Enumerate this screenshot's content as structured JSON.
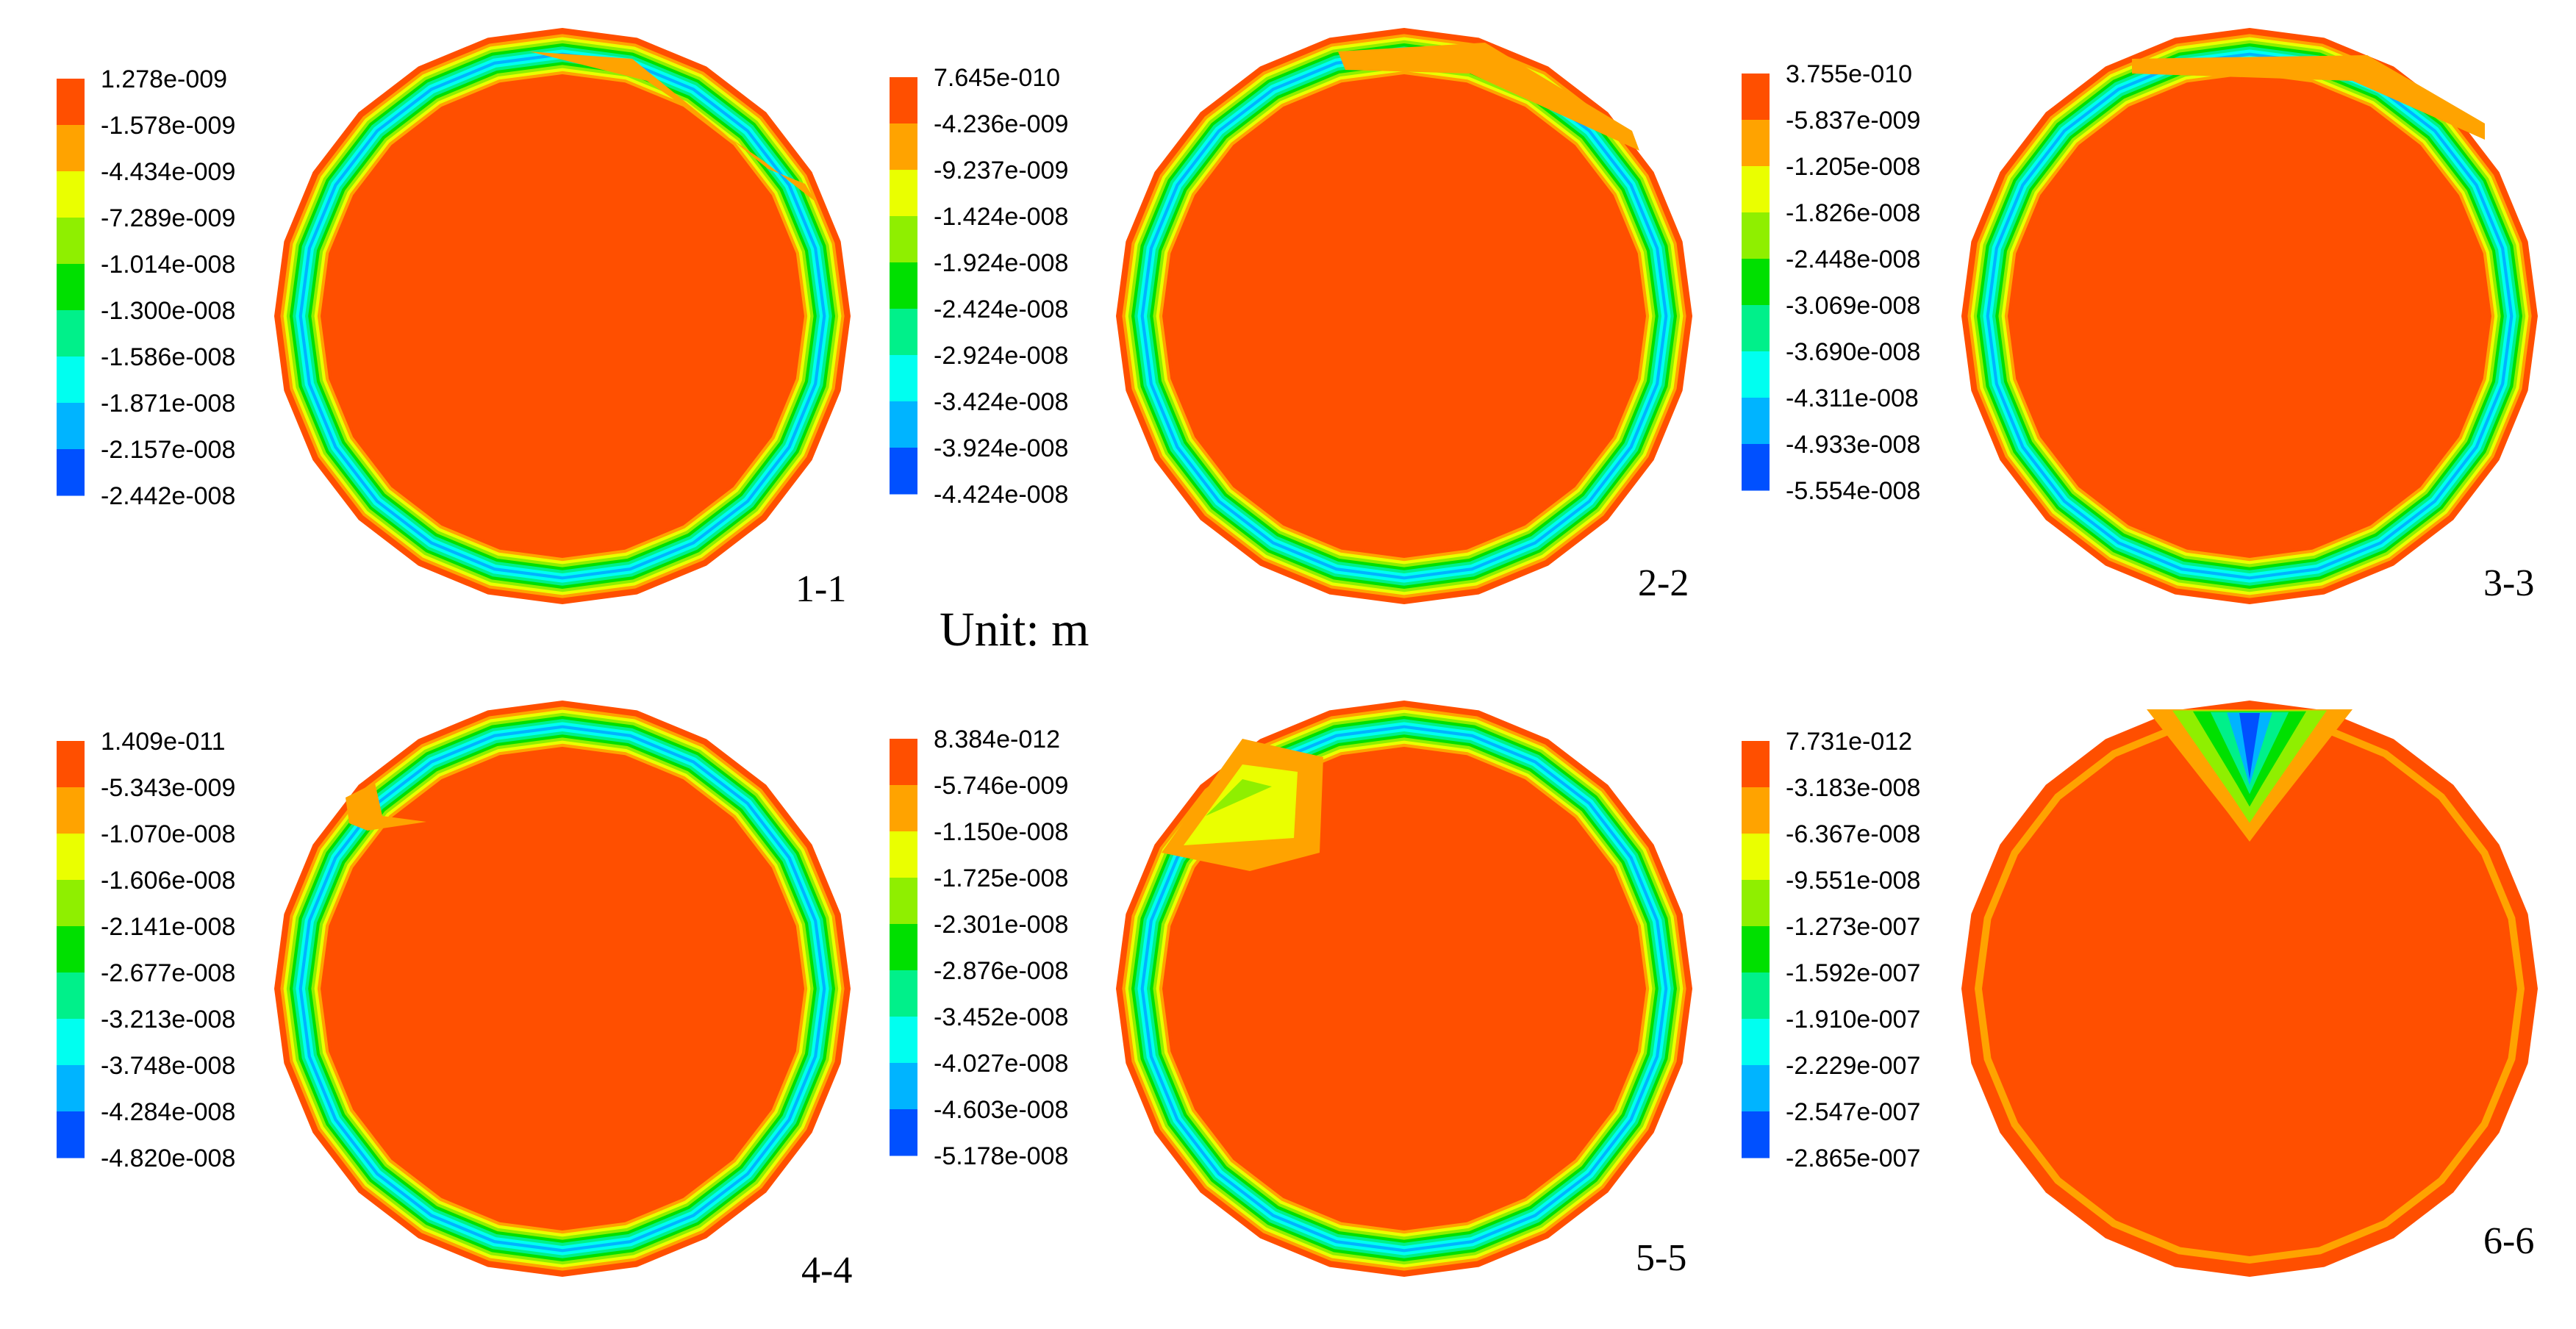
{
  "unit_label": "Unit: m",
  "colors": {
    "scale": [
      "#ff4f00",
      "#ffa300",
      "#eaff00",
      "#8fef00",
      "#00e000",
      "#00f08a",
      "#00fff0",
      "#00b4ff",
      "#0050ff"
    ],
    "background": "#ffffff"
  },
  "panels": [
    {
      "label": "1-1",
      "legend": [
        "1.278e-009",
        "-1.578e-009",
        "-4.434e-009",
        "-7.289e-009",
        "-1.014e-008",
        "-1.300e-008",
        "-1.586e-008",
        "-1.871e-008",
        "-2.157e-008",
        "-2.442e-008"
      ]
    },
    {
      "label": "2-2",
      "legend": [
        "7.645e-010",
        "-4.236e-009",
        "-9.237e-009",
        "-1.424e-008",
        "-1.924e-008",
        "-2.424e-008",
        "-2.924e-008",
        "-3.424e-008",
        "-3.924e-008",
        "-4.424e-008"
      ]
    },
    {
      "label": "3-3",
      "legend": [
        "3.755e-010",
        "-5.837e-009",
        "-1.205e-008",
        "-1.826e-008",
        "-2.448e-008",
        "-3.069e-008",
        "-3.690e-008",
        "-4.311e-008",
        "-4.933e-008",
        "-5.554e-008"
      ]
    },
    {
      "label": "4-4",
      "legend": [
        "1.409e-011",
        "-5.343e-009",
        "-1.070e-008",
        "-1.606e-008",
        "-2.141e-008",
        "-2.677e-008",
        "-3.213e-008",
        "-3.748e-008",
        "-4.284e-008",
        "-4.820e-008"
      ]
    },
    {
      "label": "5-5",
      "legend": [
        "8.384e-012",
        "-5.746e-009",
        "-1.150e-008",
        "-1.725e-008",
        "-2.301e-008",
        "-2.876e-008",
        "-3.452e-008",
        "-4.027e-008",
        "-4.603e-008",
        "-5.178e-008"
      ]
    },
    {
      "label": "6-6",
      "legend": [
        "7.731e-012",
        "-3.183e-008",
        "-6.367e-008",
        "-9.551e-008",
        "-1.273e-007",
        "-1.592e-007",
        "-1.910e-007",
        "-2.229e-007",
        "-2.547e-007",
        "-2.865e-007"
      ]
    }
  ]
}
